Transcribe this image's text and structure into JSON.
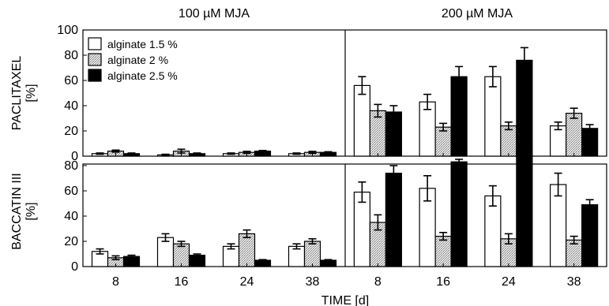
{
  "chart_data": {
    "type": "bar",
    "xlabel": "TIME [d]",
    "categories": [
      "8",
      "16",
      "24",
      "38"
    ],
    "column_titles": [
      "100 µM MJA",
      "200 µM MJA"
    ],
    "ylim": [
      0,
      100
    ],
    "yticks_top": [
      "0",
      "20",
      "40",
      "60",
      "80",
      "100"
    ],
    "yticks_bottom": [
      "0",
      "20",
      "40",
      "60",
      "80"
    ],
    "legend_position": "top-left",
    "series_meta": [
      {
        "name": "alginate 1.5 %",
        "fill": "white"
      },
      {
        "name": "alginate 2 %",
        "fill": "dotted gray"
      },
      {
        "name": "alginate 2.5 %",
        "fill": "black"
      }
    ],
    "rows": [
      {
        "ylabel_line1": "PACLITAXEL",
        "ylabel_line2": "[%]",
        "panels": [
          {
            "title": "100 µM MJA",
            "series": [
              {
                "name": "alginate 1.5 %",
                "values": [
                  2,
                  1,
                  2,
                  2
                ],
                "errors": [
                  0.5,
                  0.5,
                  0.5,
                  0.5
                ]
              },
              {
                "name": "alginate 2 %",
                "values": [
                  4,
                  4,
                  3,
                  3
                ],
                "errors": [
                  0.8,
                  1.5,
                  0.8,
                  0.8
                ]
              },
              {
                "name": "alginate 2.5 %",
                "values": [
                  2,
                  2,
                  4,
                  3
                ],
                "errors": [
                  0.5,
                  0.5,
                  0.5,
                  0.5
                ]
              }
            ]
          },
          {
            "title": "200 µM MJA",
            "series": [
              {
                "name": "alginate 1.5 %",
                "values": [
                  56,
                  43,
                  63,
                  24
                ],
                "errors": [
                  7,
                  6,
                  8,
                  3
                ]
              },
              {
                "name": "alginate 2 %",
                "values": [
                  36,
                  23,
                  24,
                  34
                ],
                "errors": [
                  5,
                  3,
                  3,
                  4
                ]
              },
              {
                "name": "alginate 2.5 %",
                "values": [
                  35,
                  63,
                  76,
                  22
                ],
                "errors": [
                  5,
                  8,
                  10,
                  3
                ]
              }
            ]
          }
        ]
      },
      {
        "ylabel_line1": "BACCATIN III",
        "ylabel_line2": "[%]",
        "panels": [
          {
            "title": "100 µM MJA",
            "series": [
              {
                "name": "alginate 1.5 %",
                "values": [
                  12,
                  23,
                  16,
                  16
                ],
                "errors": [
                  2,
                  3,
                  2,
                  2
                ]
              },
              {
                "name": "alginate 2 %",
                "values": [
                  7,
                  18,
                  26,
                  20
                ],
                "errors": [
                  1.5,
                  2,
                  3,
                  2
                ]
              },
              {
                "name": "alginate 2.5 %",
                "values": [
                  8,
                  9,
                  5,
                  5
                ],
                "errors": [
                  1,
                  1,
                  0.5,
                  0.5
                ]
              }
            ]
          },
          {
            "title": "200 µM MJA",
            "series": [
              {
                "name": "alginate 1.5 %",
                "values": [
                  59,
                  62,
                  56,
                  65
                ],
                "errors": [
                  8,
                  10,
                  8,
                  9
                ]
              },
              {
                "name": "alginate 2 %",
                "values": [
                  35,
                  24,
                  22,
                  21
                ],
                "errors": [
                  6,
                  3,
                  4,
                  3
                ]
              },
              {
                "name": "alginate 2.5 %",
                "values": [
                  74,
                  83,
                  91,
                  49
                ],
                "errors": [
                  6,
                  8,
                  10,
                  4
                ]
              }
            ]
          }
        ]
      }
    ]
  },
  "colors": {
    "bar_black": "#000000",
    "bar_white": "#ffffff",
    "bar_gray": "#d8d8d8",
    "axis": "#000000"
  }
}
